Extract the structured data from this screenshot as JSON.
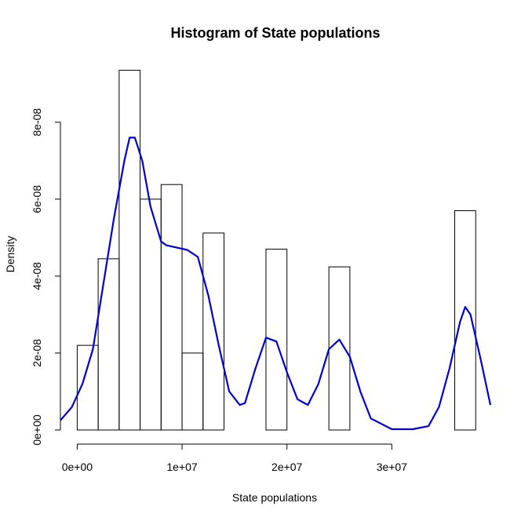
{
  "chart_data": {
    "type": "bar",
    "title": "Histogram of State populations",
    "xlabel": "State populations",
    "ylabel": "Density",
    "xlim": [
      -1600000,
      39400000
    ],
    "ylim": [
      0,
      9.3e-08
    ],
    "x_ticks": [
      {
        "value": 0,
        "label": "0e+00"
      },
      {
        "value": 10000000,
        "label": "1e+07"
      },
      {
        "value": 20000000,
        "label": "2e+07"
      },
      {
        "value": 30000000,
        "label": "3e+07"
      }
    ],
    "y_ticks": [
      {
        "value": 0,
        "label": "0e+00"
      },
      {
        "value": 2e-08,
        "label": "2e-08"
      },
      {
        "value": 4e-08,
        "label": "4e-08"
      },
      {
        "value": 6e-08,
        "label": "6e-08"
      },
      {
        "value": 8e-08,
        "label": "8e-08"
      }
    ],
    "bins": [
      {
        "x0": 0,
        "x1": 2000000,
        "density": 2.2e-08
      },
      {
        "x0": 2000000,
        "x1": 4000000,
        "density": 4.45e-08
      },
      {
        "x0": 4000000,
        "x1": 6000000,
        "density": 9.35e-08
      },
      {
        "x0": 6000000,
        "x1": 8000000,
        "density": 6e-08
      },
      {
        "x0": 8000000,
        "x1": 10000000,
        "density": 6.38e-08
      },
      {
        "x0": 10000000,
        "x1": 12000000,
        "density": 2e-08
      },
      {
        "x0": 12000000,
        "x1": 14000000,
        "density": 5.12e-08
      },
      {
        "x0": 18000000,
        "x1": 20000000,
        "density": 4.7e-08
      },
      {
        "x0": 24000000,
        "x1": 26000000,
        "density": 4.24e-08
      },
      {
        "x0": 36000000,
        "x1": 38000000,
        "density": 5.7e-08
      }
    ],
    "density_curve": {
      "color": "#0000CD",
      "x": [
        -1600000,
        -500000,
        500000,
        1500000,
        2500000,
        3500000,
        4500000,
        5000000,
        5500000,
        6200000,
        7000000,
        8000000,
        8500000,
        9500000,
        10500000,
        11500000,
        12500000,
        13500000,
        14500000,
        15500000,
        16000000,
        17000000,
        18000000,
        19000000,
        20000000,
        21000000,
        22000000,
        23000000,
        24000000,
        25000000,
        26000000,
        27000000,
        28000000,
        30000000,
        32000000,
        33500000,
        34500000,
        35500000,
        36500000,
        37000000,
        37500000,
        38500000,
        39400000
      ],
      "y": [
        2.5e-09,
        6e-09,
        1.2e-08,
        2.1e-08,
        3.8e-08,
        5.5e-08,
        7e-08,
        7.6e-08,
        7.6e-08,
        7e-08,
        5.8e-08,
        4.9e-08,
        4.8e-08,
        4.74e-08,
        4.68e-08,
        4.5e-08,
        3.5e-08,
        2.2e-08,
        1e-08,
        6.5e-09,
        7e-09,
        1.6e-08,
        2.4e-08,
        2.3e-08,
        1.5e-08,
        8e-09,
        6.5e-09,
        1.2e-08,
        2.1e-08,
        2.35e-08,
        1.9e-08,
        1e-08,
        3e-09,
        2e-10,
        2e-10,
        1e-09,
        6e-09,
        1.6e-08,
        2.8e-08,
        3.2e-08,
        3e-08,
        1.8e-08,
        6.5e-09
      ]
    }
  }
}
